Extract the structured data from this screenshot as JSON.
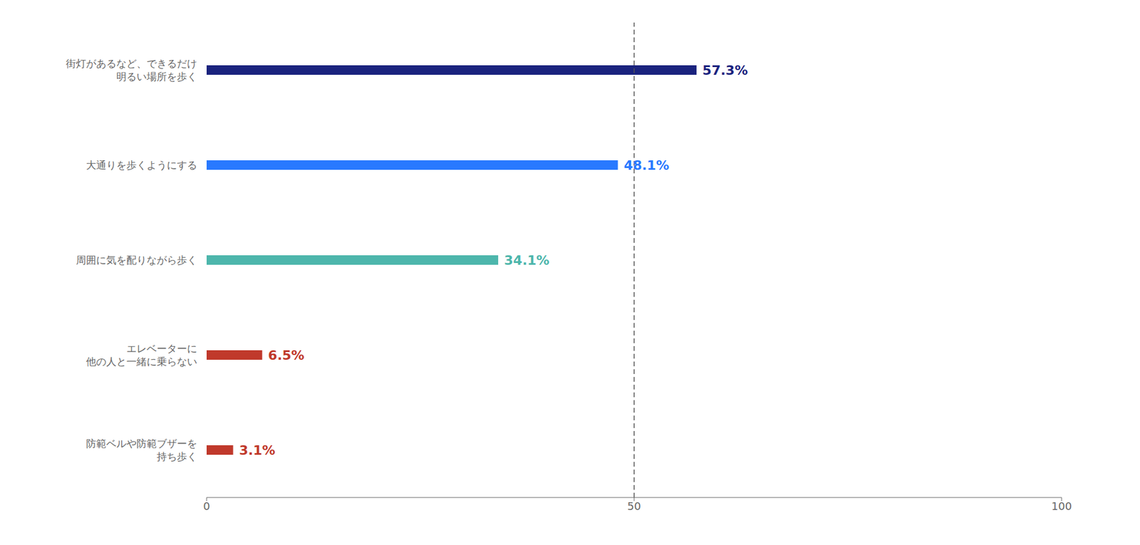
{
  "chart_data": {
    "type": "bar",
    "orientation": "horizontal",
    "categories": [
      "街灯があるなど、できるだけ\n明るい場所を歩く",
      "大通りを歩くようにする",
      "周囲に気を配りながら歩く",
      "エレベーターに\n他の人と一緒に乗らない",
      "防範ベルや防範ブザーを\n持ち歩く"
    ],
    "values": [
      57.3,
      48.1,
      34.1,
      6.5,
      3.1
    ],
    "value_labels": [
      "57.3%",
      "48.1%",
      "34.1%",
      "6.5%",
      "3.1%"
    ],
    "data_labels": true,
    "colors": [
      "#1a237e",
      "#2979ff",
      "#4db6ac",
      "#c0392b",
      "#c0392b"
    ],
    "xlim": [
      0,
      100
    ],
    "xticks": [
      0,
      50,
      100
    ],
    "grid": false,
    "reference_lines": [
      {
        "x": 50,
        "line_style": "dashed"
      }
    ]
  }
}
